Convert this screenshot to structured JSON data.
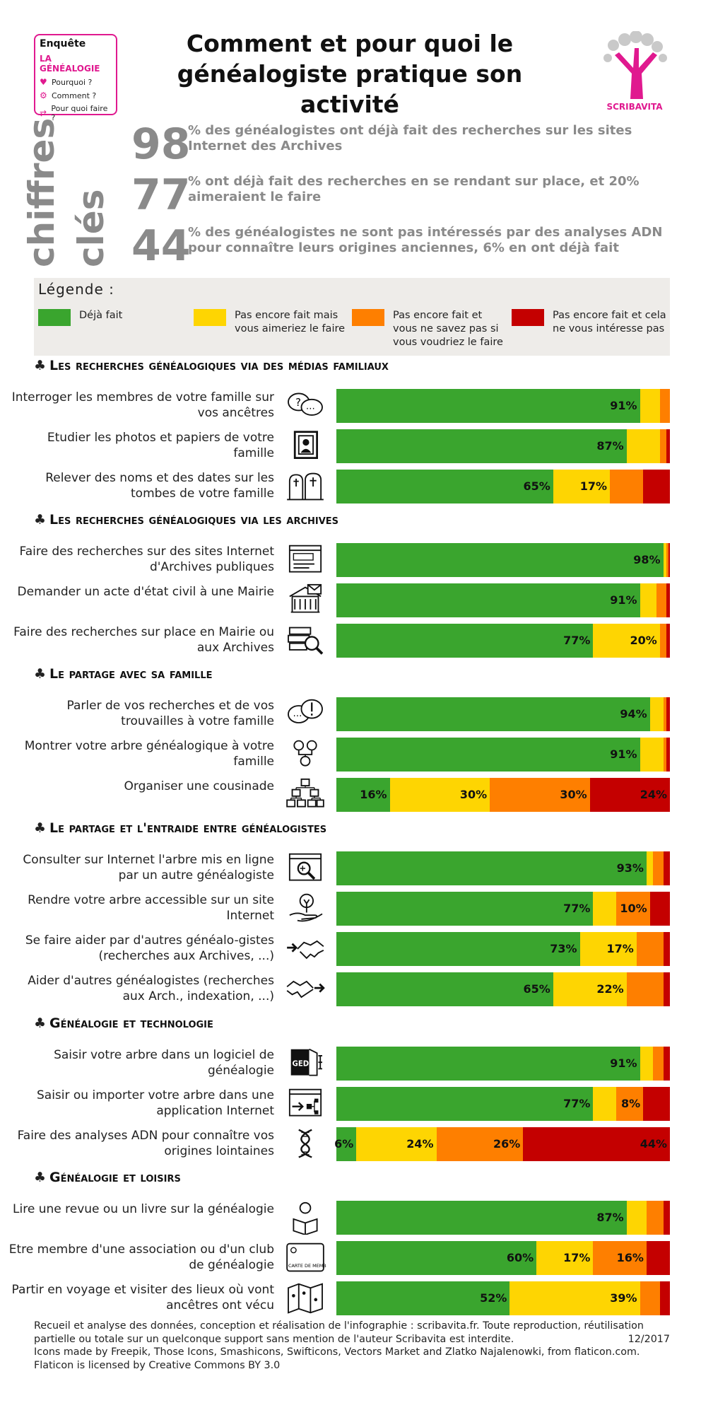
{
  "header": {
    "survey_label": "Enquête",
    "survey_topic": "LA GÉNÉALOGIE",
    "questions": [
      "Pourquoi ?",
      "Comment ?",
      "Pour quoi faire ?"
    ],
    "title_line1": "Comment et pour quoi le",
    "title_line2": "généalogiste pratique son activité",
    "logo_text": "SCRIBAVITA"
  },
  "key_figures": {
    "label_line1": "chiffres",
    "label_line2": "clés",
    "items": [
      {
        "number": "98",
        "text": "% des généalogistes ont déjà fait des recherches sur les sites Internet des Archives"
      },
      {
        "number": "77",
        "text": "% ont déjà fait des recherches en se rendant sur  place, et 20% aimeraient le faire"
      },
      {
        "number": "44",
        "text": "% des généalogistes ne sont pas intéressés par des analyses ADN pour connaître leurs origines anciennes, 6% en ont déjà fait"
      }
    ]
  },
  "legend": {
    "title": "Légende :",
    "items": [
      {
        "label": "Déjà fait",
        "color": "#3aa52e"
      },
      {
        "label": "Pas encore fait mais vous aimeriez le faire",
        "color": "#fed502"
      },
      {
        "label": "Pas encore fait et vous ne savez pas si vous voudriez le faire",
        "color": "#fe7f00"
      },
      {
        "label": "Pas encore fait et cela ne vous intéresse pas",
        "color": "#c40000"
      }
    ]
  },
  "chart_data": {
    "type": "bar",
    "orientation": "horizontal-stacked-100",
    "series_names": [
      "Déjà fait",
      "Pas encore fait mais vous aimeriez le faire",
      "Pas encore fait et vous ne savez pas si vous voudriez le faire",
      "Pas encore fait et cela ne vous intéresse pas"
    ],
    "colors": [
      "#3aa52e",
      "#fed502",
      "#fe7f00",
      "#c40000"
    ],
    "sections": [
      {
        "title": "Les recherches généalogiques via des médias familiaux",
        "rows": [
          {
            "label": "Interroger les membres de votre famille sur vos ancêtres",
            "icon": "speech-bubbles-icon",
            "values": [
              91,
              6,
              3,
              0
            ],
            "labels": [
              "91%",
              "",
              "",
              ""
            ]
          },
          {
            "label": "Etudier les photos et papiers de votre famille",
            "icon": "photo-frame-icon",
            "values": [
              87,
              10,
              2,
              1
            ],
            "labels": [
              "87%",
              "",
              "",
              ""
            ]
          },
          {
            "label": "Relever des noms et des dates sur les tombes de votre famille",
            "icon": "tombstones-icon",
            "values": [
              65,
              17,
              10,
              8
            ],
            "labels": [
              "65%",
              "17%",
              "",
              ""
            ]
          }
        ]
      },
      {
        "title": "Les recherches généalogiques via les archives",
        "rows": [
          {
            "label": "Faire des recherches sur des sites Internet d'Archives publiques",
            "icon": "website-icon",
            "values": [
              98,
              1,
              0.5,
              0.5
            ],
            "labels": [
              "98%",
              "",
              "",
              ""
            ]
          },
          {
            "label": "Demander un acte d'état civil à une Mairie",
            "icon": "town-hall-icon",
            "values": [
              91,
              5,
              3,
              1
            ],
            "labels": [
              "91%",
              "",
              "",
              ""
            ]
          },
          {
            "label": "Faire des recherches sur place en Mairie ou aux Archives",
            "icon": "books-search-icon",
            "values": [
              77,
              20,
              2,
              1
            ],
            "labels": [
              "77%",
              "20%",
              "",
              ""
            ]
          }
        ]
      },
      {
        "title": "Le partage avec sa famille",
        "rows": [
          {
            "label": "Parler de vos recherches et de vos trouvailles à votre famille",
            "icon": "chat-exclamation-icon",
            "values": [
              94,
              4,
              1,
              1
            ],
            "labels": [
              "94%",
              "",
              "",
              ""
            ]
          },
          {
            "label": "Montrer votre arbre généalogique à votre famille",
            "icon": "family-tree-people-icon",
            "values": [
              91,
              7,
              1,
              1
            ],
            "labels": [
              "91%",
              "",
              "",
              ""
            ]
          },
          {
            "label": "Organiser une cousinade",
            "icon": "family-gathering-icon",
            "values": [
              16,
              30,
              30,
              24
            ],
            "labels": [
              "16%",
              "30%",
              "30%",
              "24%"
            ]
          }
        ]
      },
      {
        "title": "Le partage et l'entraide entre généalogistes",
        "rows": [
          {
            "label": "Consulter sur Internet l'arbre mis en ligne par un autre généalogiste",
            "icon": "web-tree-search-icon",
            "values": [
              93,
              2,
              3,
              2
            ],
            "labels": [
              "93%",
              "",
              "",
              ""
            ]
          },
          {
            "label": "Rendre votre arbre accessible sur un site Internet",
            "icon": "hand-tree-icon",
            "values": [
              77,
              7,
              10,
              6
            ],
            "labels": [
              "77%",
              "",
              "10%",
              ""
            ]
          },
          {
            "label": "Se faire aider par d'autres généalo-gistes (recherches aux Archives, ...)",
            "icon": "handshake-in-icon",
            "values": [
              73,
              17,
              8,
              2
            ],
            "labels": [
              "73%",
              "17%",
              "",
              ""
            ]
          },
          {
            "label": "Aider d'autres généalogistes (recherches aux Arch., indexation, ...)",
            "icon": "handshake-out-icon",
            "values": [
              65,
              22,
              11,
              2
            ],
            "labels": [
              "65%",
              "22%",
              "",
              ""
            ]
          }
        ]
      },
      {
        "title": "Généalogie et technologie",
        "rows": [
          {
            "label": "Saisir votre arbre dans un logiciel de généalogie",
            "icon": "ged-file-icon",
            "values": [
              91,
              4,
              3,
              2
            ],
            "labels": [
              "91%",
              "",
              "",
              ""
            ]
          },
          {
            "label": "Saisir ou importer votre arbre dans une application Internet",
            "icon": "import-tree-icon",
            "values": [
              77,
              7,
              8,
              8
            ],
            "labels": [
              "77%",
              "",
              "8%",
              ""
            ]
          },
          {
            "label": "Faire des analyses ADN pour connaître vos origines lointaines",
            "icon": "dna-icon",
            "values": [
              6,
              24,
              26,
              44
            ],
            "labels": [
              "6%",
              "24%",
              "26%",
              "44%"
            ]
          }
        ]
      },
      {
        "title": "Généalogie et loisirs",
        "rows": [
          {
            "label": "Lire une revue ou un livre sur la généalogie",
            "icon": "reader-icon",
            "values": [
              87,
              6,
              5,
              2
            ],
            "labels": [
              "87%",
              "",
              "",
              ""
            ]
          },
          {
            "label": "Etre membre d'une association ou d'un club de généalogie",
            "icon": "membership-card-icon",
            "values": [
              60,
              17,
              16,
              7
            ],
            "labels": [
              "60%",
              "17%",
              "16%",
              ""
            ]
          },
          {
            "label": "Partir en voyage et visiter des lieux où vont ancêtres ont vécu",
            "icon": "travel-map-icon",
            "values": [
              52,
              39,
              6,
              3
            ],
            "labels": [
              "52%",
              "39%",
              "",
              ""
            ]
          }
        ]
      }
    ]
  },
  "icon_card_text": "CARTE DE MEMBRE",
  "icon_ged_text": "GED",
  "icon_www_text": "www",
  "footer": {
    "line1": "Recueil et analyse des données, conception et réalisation de l'infographie : scribavita.fr. Toute reproduction, réutilisation",
    "line2": "partielle ou totale sur un quelconque support sans mention de l'auteur Scribavita est interdite.",
    "date": "12/2017",
    "line3": "Icons made by Freepik, Those Icons, Smashicons, Swifticons, Vectors Market and Zlatko Najalenowki, from flaticon.com.",
    "line4": "Flaticon is licensed by Creative Commons BY 3.0"
  }
}
